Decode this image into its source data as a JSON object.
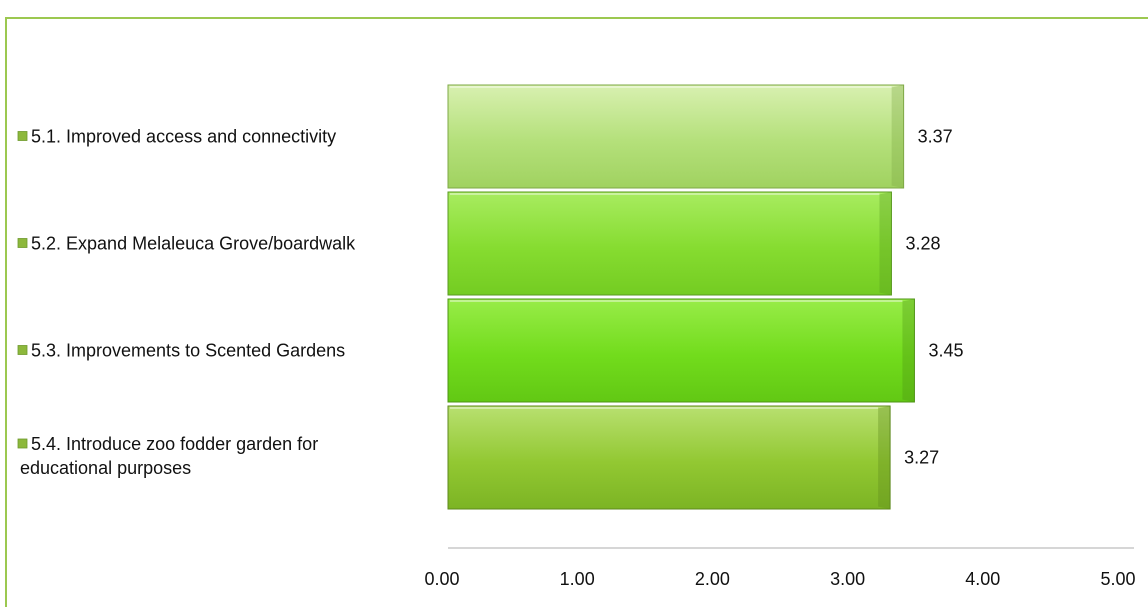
{
  "chart_data": {
    "type": "bar",
    "orientation": "horizontal",
    "categories": [
      [
        "5.1. Improved access and connectivity"
      ],
      [
        "5.2. Expand Melaleuca Grove/boardwalk"
      ],
      [
        "5.3. Improvements to Scented Gardens"
      ],
      [
        "5.4. Introduce zoo fodder garden for",
        "educational purposes"
      ]
    ],
    "values": [
      3.37,
      3.28,
      3.45,
      3.27
    ],
    "value_labels": [
      "3.37",
      "3.28",
      "3.45",
      "3.27"
    ],
    "x_ticks": [
      "0.00",
      "1.00",
      "2.00",
      "3.00",
      "4.00",
      "5.00"
    ],
    "xlim": [
      0,
      5
    ],
    "grid": false,
    "title": "",
    "xlabel": "",
    "ylabel": "",
    "colors": {
      "frame": "#9cc850",
      "legend_marker": "#8db83c",
      "axis": "#c8c8c8",
      "bars": [
        {
          "top": "#d8f0b0",
          "mid": "#b4e07a",
          "bottom": "#a0d260",
          "edge": "#7ea845"
        },
        {
          "top": "#a8ec60",
          "mid": "#86dc30",
          "bottom": "#74cc22",
          "edge": "#5a9a20"
        },
        {
          "top": "#98ec48",
          "mid": "#72dc1c",
          "bottom": "#62c814",
          "edge": "#4e9414"
        },
        {
          "top": "#b8e070",
          "mid": "#92c832",
          "bottom": "#7cb424",
          "edge": "#5e8a1c"
        }
      ]
    }
  }
}
